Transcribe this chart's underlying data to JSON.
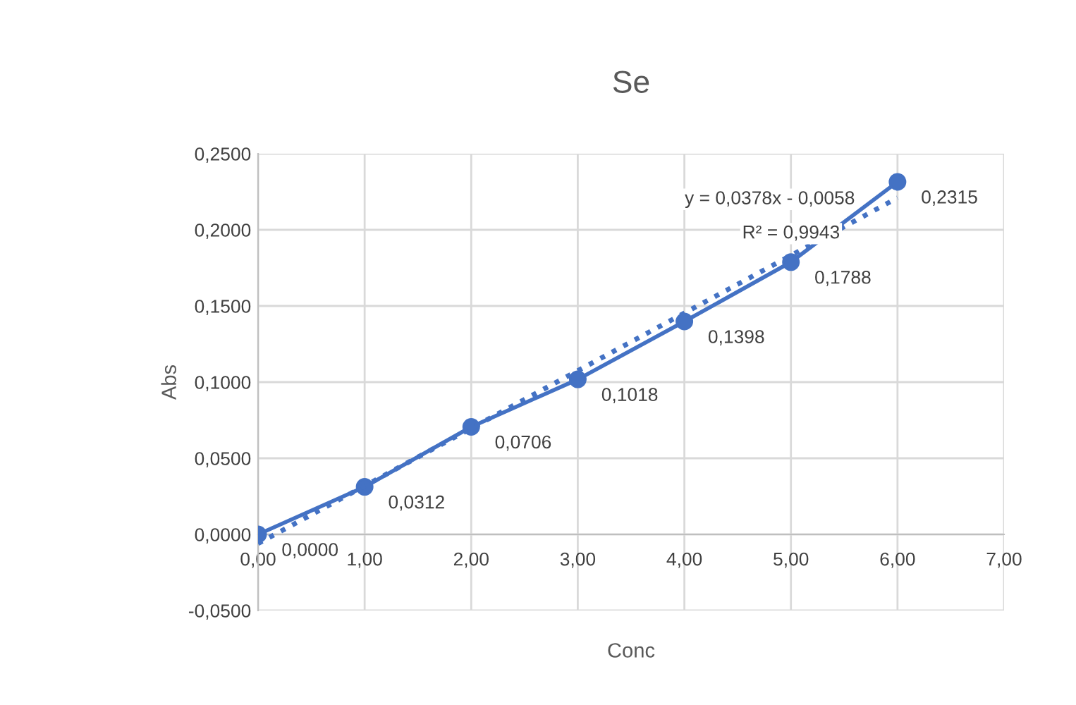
{
  "chart_data": {
    "type": "line",
    "title": "Se",
    "xlabel": "Conc",
    "ylabel": "Abs",
    "x": [
      0,
      1,
      2,
      3,
      4,
      5,
      6
    ],
    "series": [
      {
        "type": "line",
        "color": "#4472c4",
        "marker": "circle",
        "line_style": "solid",
        "values": [
          0.0,
          0.0312,
          0.0706,
          0.1018,
          0.1398,
          0.1788,
          0.2315
        ],
        "value_labels": [
          "0,0000",
          "0,0312",
          "0,0706",
          "0,1018",
          "0,1398",
          "0,1788",
          "0,2315"
        ]
      },
      {
        "type": "line",
        "color": "#4472c4",
        "marker": "none",
        "line_style": "dotted",
        "x": [
          0,
          6
        ],
        "values": [
          -0.006,
          0.221
        ]
      }
    ],
    "annotations": [
      "y = 0,0378x - 0,0058",
      "R² = 0,9943"
    ],
    "xlim": [
      0,
      7
    ],
    "xticks": [
      {
        "value": 0,
        "label": "0,00"
      },
      {
        "value": 1,
        "label": "1,00"
      },
      {
        "value": 2,
        "label": "2,00"
      },
      {
        "value": 3,
        "label": "3,00"
      },
      {
        "value": 4,
        "label": "4,00"
      },
      {
        "value": 5,
        "label": "5,00"
      },
      {
        "value": 6,
        "label": "6,00"
      },
      {
        "value": 7,
        "label": "7,00"
      }
    ],
    "ylim": [
      -0.05,
      0.25
    ],
    "yticks": [
      {
        "value": -0.05,
        "label": "-0,0500"
      },
      {
        "value": 0,
        "label": "0,0000"
      },
      {
        "value": 0.05,
        "label": "0,0500"
      },
      {
        "value": 0.1,
        "label": "0,1000"
      },
      {
        "value": 0.15,
        "label": "0,1500"
      },
      {
        "value": 0.2,
        "label": "0,2000"
      },
      {
        "value": 0.25,
        "label": "0,2500"
      }
    ],
    "grid": true,
    "legend": false
  }
}
